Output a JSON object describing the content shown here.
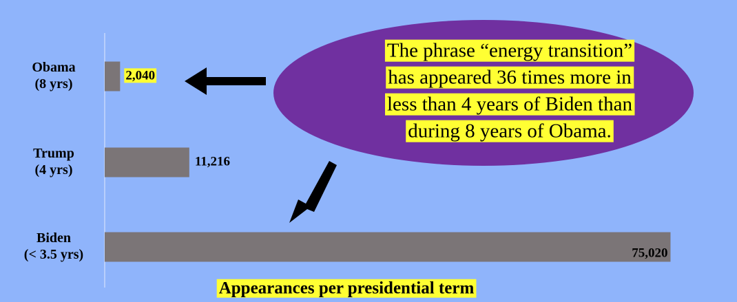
{
  "chart_data": {
    "type": "bar",
    "orientation": "horizontal",
    "categories": [
      "Obama\n(8 yrs)",
      "Trump\n(4 yrs)",
      "Biden\n(< 3.5 yrs)"
    ],
    "values": [
      2040,
      11216,
      75020
    ],
    "value_labels": [
      "2,040",
      "11,216",
      "75,020"
    ],
    "highlighted": [
      true,
      false,
      true
    ],
    "color": "#7b7577",
    "highlight_color": "#ffff33",
    "xlim": [
      0,
      80000
    ],
    "xlabel": "Appearances per presidential term",
    "annotation": [
      "The phrase “energy transition”",
      "has appeared 36 times more in",
      "less than 4 years of Biden than",
      "during 8 years of Obama."
    ]
  }
}
